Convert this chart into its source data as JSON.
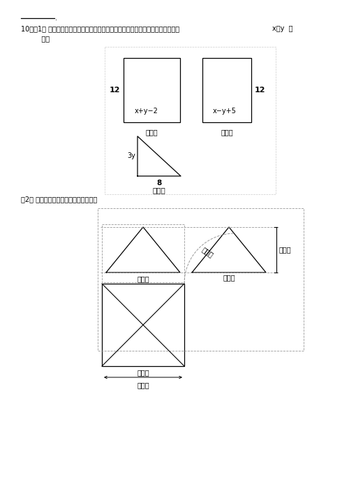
{
  "bg_color": "#ffffff",
  "line_color": "#000000",
  "dashed_color": "#999999",
  "header_underline": true,
  "q10_part1a": "10．（1） 如图，是一个棱柱的三视图，请根据三视图的作图原则列出方程组，求出",
  "q10_part1b": "x、y  的",
  "q10_part1c": "   値。",
  "q2_label": "（2） 画出如下图的正四棱锥的三视图。",
  "front_expr": "x+y−2",
  "side_expr": "x−y+5",
  "height12": "12",
  "top_h_label": "3y",
  "top_b_label": "8",
  "front_view_zh": "正视图",
  "side_view_zh": "俧视图",
  "top_view_zh": "俰视图",
  "gaopingqi": "高平齐",
  "kuangxiangdeng": "宽相等",
  "changduizheng": "长对正"
}
